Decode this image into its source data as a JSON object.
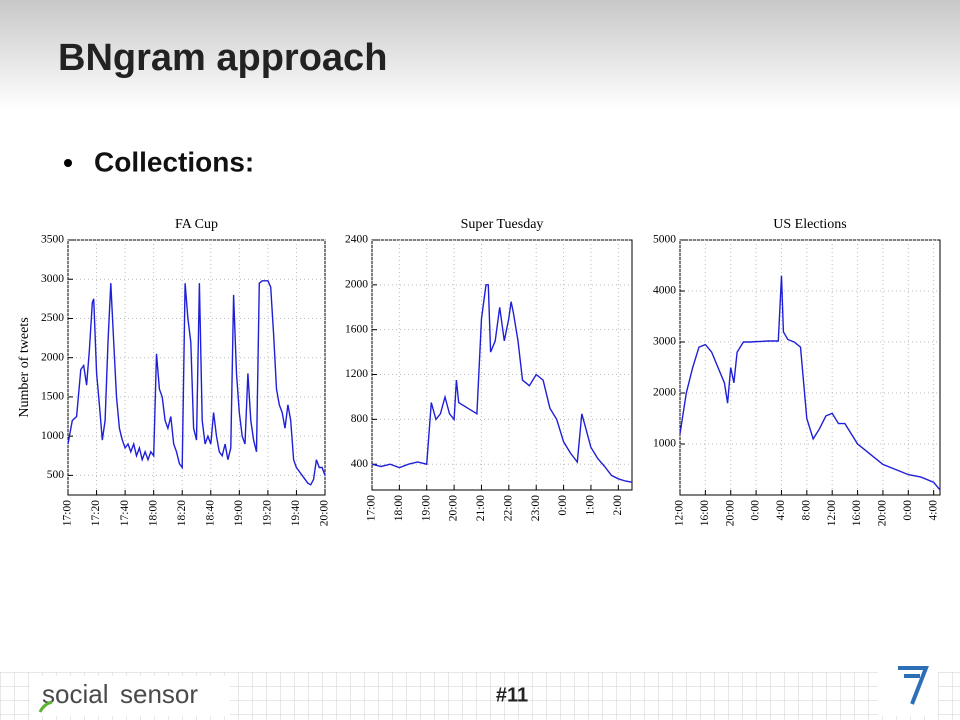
{
  "slide": {
    "title": "BNgram approach",
    "bullet": "Collections:",
    "page_number": "#11",
    "logo": [
      "social",
      "sensor"
    ]
  },
  "chart_data": [
    {
      "type": "line",
      "title": "FA Cup",
      "ylabel": "Number of tweets",
      "color": "#1f1fd8",
      "grid": true,
      "x": [
        0,
        3,
        6,
        9,
        11,
        13,
        15,
        17,
        18,
        20,
        22,
        24,
        26,
        28,
        30,
        32,
        34,
        36,
        38,
        40,
        42,
        44,
        46,
        48,
        50,
        52,
        54,
        56,
        58,
        60,
        62,
        64,
        66,
        68,
        70,
        72,
        74,
        76,
        78,
        80,
        82,
        84,
        86,
        88,
        90,
        92,
        94,
        96,
        98,
        100,
        102,
        104,
        106,
        108,
        110,
        112,
        114,
        116,
        118,
        120,
        122,
        124,
        126,
        128,
        130,
        132,
        134,
        136,
        140,
        142,
        144,
        146,
        148,
        150,
        152,
        154,
        156,
        158,
        160,
        162,
        164,
        166,
        168,
        170,
        172,
        174,
        176,
        178,
        180
      ],
      "values": [
        900,
        1200,
        1250,
        1850,
        1900,
        1650,
        2100,
        2700,
        2750,
        1800,
        1400,
        950,
        1200,
        2200,
        2950,
        2200,
        1500,
        1100,
        950,
        850,
        900,
        800,
        900,
        750,
        850,
        700,
        800,
        700,
        800,
        750,
        2050,
        1600,
        1500,
        1200,
        1100,
        1250,
        900,
        800,
        650,
        600,
        2950,
        2500,
        2200,
        1100,
        950,
        2950,
        1200,
        900,
        1000,
        900,
        1300,
        1000,
        800,
        750,
        900,
        700,
        850,
        2800,
        1800,
        1300,
        1000,
        900,
        1800,
        1200,
        950,
        800,
        2950,
        2980,
        2980,
        2900,
        2300,
        1600,
        1400,
        1300,
        1100,
        1400,
        1200,
        700,
        600,
        550,
        500,
        450,
        400,
        380,
        450,
        700,
        600,
        600,
        500
      ],
      "xlim": [
        0,
        180
      ],
      "xticks": [
        {
          "value": 0,
          "label": "17:00"
        },
        {
          "value": 20,
          "label": "17:20"
        },
        {
          "value": 40,
          "label": "17:40"
        },
        {
          "value": 60,
          "label": "18:00"
        },
        {
          "value": 80,
          "label": "18:20"
        },
        {
          "value": 100,
          "label": "18:40"
        },
        {
          "value": 120,
          "label": "19:00"
        },
        {
          "value": 140,
          "label": "19:20"
        },
        {
          "value": 160,
          "label": "19:40"
        },
        {
          "value": 180,
          "label": "20:00"
        }
      ],
      "ylim": [
        250,
        3500
      ],
      "yticks": [
        500,
        1000,
        1500,
        2000,
        2500,
        3000,
        3500
      ]
    },
    {
      "type": "line",
      "title": "Super Tuesday",
      "color": "#1f1fd8",
      "grid": true,
      "x": [
        0,
        20,
        40,
        60,
        80,
        100,
        120,
        130,
        140,
        150,
        160,
        170,
        180,
        185,
        190,
        210,
        230,
        240,
        250,
        255,
        260,
        270,
        280,
        290,
        300,
        305,
        310,
        320,
        330,
        345,
        360,
        375,
        390,
        405,
        420,
        435,
        450,
        460,
        470,
        480,
        495,
        510,
        525,
        540,
        555,
        570
      ],
      "values": [
        400,
        380,
        400,
        370,
        400,
        420,
        400,
        950,
        800,
        850,
        1000,
        850,
        800,
        1150,
        950,
        900,
        850,
        1700,
        2000,
        2000,
        1400,
        1500,
        1800,
        1500,
        1700,
        1850,
        1750,
        1500,
        1150,
        1100,
        1200,
        1150,
        900,
        800,
        600,
        500,
        420,
        850,
        700,
        550,
        450,
        380,
        300,
        270,
        250,
        240
      ],
      "xlim": [
        0,
        570
      ],
      "xticks": [
        {
          "value": 0,
          "label": "17:00"
        },
        {
          "value": 60,
          "label": "18:00"
        },
        {
          "value": 120,
          "label": "19:00"
        },
        {
          "value": 180,
          "label": "20:00"
        },
        {
          "value": 240,
          "label": "21:00"
        },
        {
          "value": 300,
          "label": "22:00"
        },
        {
          "value": 360,
          "label": "23:00"
        },
        {
          "value": 420,
          "label": "0:00"
        },
        {
          "value": 480,
          "label": "1:00"
        },
        {
          "value": 540,
          "label": "2:00"
        }
      ],
      "ylim": [
        170,
        2400
      ],
      "yticks": [
        400,
        800,
        1200,
        1600,
        2000,
        2400
      ]
    },
    {
      "type": "line",
      "title": "US Elections",
      "color": "#1f1fd8",
      "grid": true,
      "x": [
        0,
        1,
        2,
        3,
        4,
        5,
        6,
        7,
        7.5,
        8,
        8.5,
        9,
        10,
        11,
        14,
        15.5,
        16,
        16.3,
        17,
        18,
        19,
        20,
        21,
        22,
        23,
        24,
        25,
        26,
        27,
        28,
        29,
        30,
        31,
        32,
        34,
        36,
        38,
        40,
        41
      ],
      "values": [
        1200,
        2000,
        2500,
        2900,
        2950,
        2800,
        2500,
        2200,
        1800,
        2500,
        2200,
        2800,
        3000,
        3000,
        3020,
        3020,
        4300,
        3200,
        3050,
        3000,
        2900,
        1500,
        1100,
        1300,
        1550,
        1600,
        1400,
        1400,
        1200,
        1000,
        900,
        800,
        700,
        600,
        500,
        400,
        350,
        250,
        100
      ],
      "xlim": [
        0,
        41
      ],
      "xticks": [
        {
          "value": 0,
          "label": "12:00"
        },
        {
          "value": 4,
          "label": "16:00"
        },
        {
          "value": 8,
          "label": "20:00"
        },
        {
          "value": 12,
          "label": "0:00"
        },
        {
          "value": 16,
          "label": "4:00"
        },
        {
          "value": 20,
          "label": "8:00"
        },
        {
          "value": 24,
          "label": "12:00"
        },
        {
          "value": 28,
          "label": "16:00"
        },
        {
          "value": 32,
          "label": "20:00"
        },
        {
          "value": 36,
          "label": "0:00"
        },
        {
          "value": 40,
          "label": "4:00"
        }
      ],
      "ylim": [
        0,
        5000
      ],
      "yticks": [
        1000,
        2000,
        3000,
        4000,
        5000
      ]
    }
  ]
}
